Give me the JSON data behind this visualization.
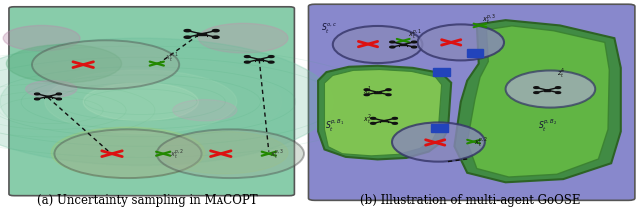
{
  "figsize": [
    6.4,
    2.12
  ],
  "dpi": 100,
  "caption_left": "(a) Uncertainty sampling in MᴀCOPT",
  "caption_right": "(b) Illustration of multi-agent GoOSE",
  "caption_fontsize": 8.5,
  "left_bg": "#7dd4b8",
  "left_border": "#444444",
  "right_bg": "#9999dd",
  "right_border": "#444444",
  "colors": {
    "red_x": "#dd1111",
    "green_x": "#228800",
    "drone": "#111111",
    "dashed": "#111111",
    "circle_face": "#88aa88",
    "circle_edge": "#555555",
    "green_outer": "#3a8c3a",
    "green_inner": "#88cc55",
    "blue_dot": "#1144cc",
    "purple_blob": "#cc88bb"
  }
}
